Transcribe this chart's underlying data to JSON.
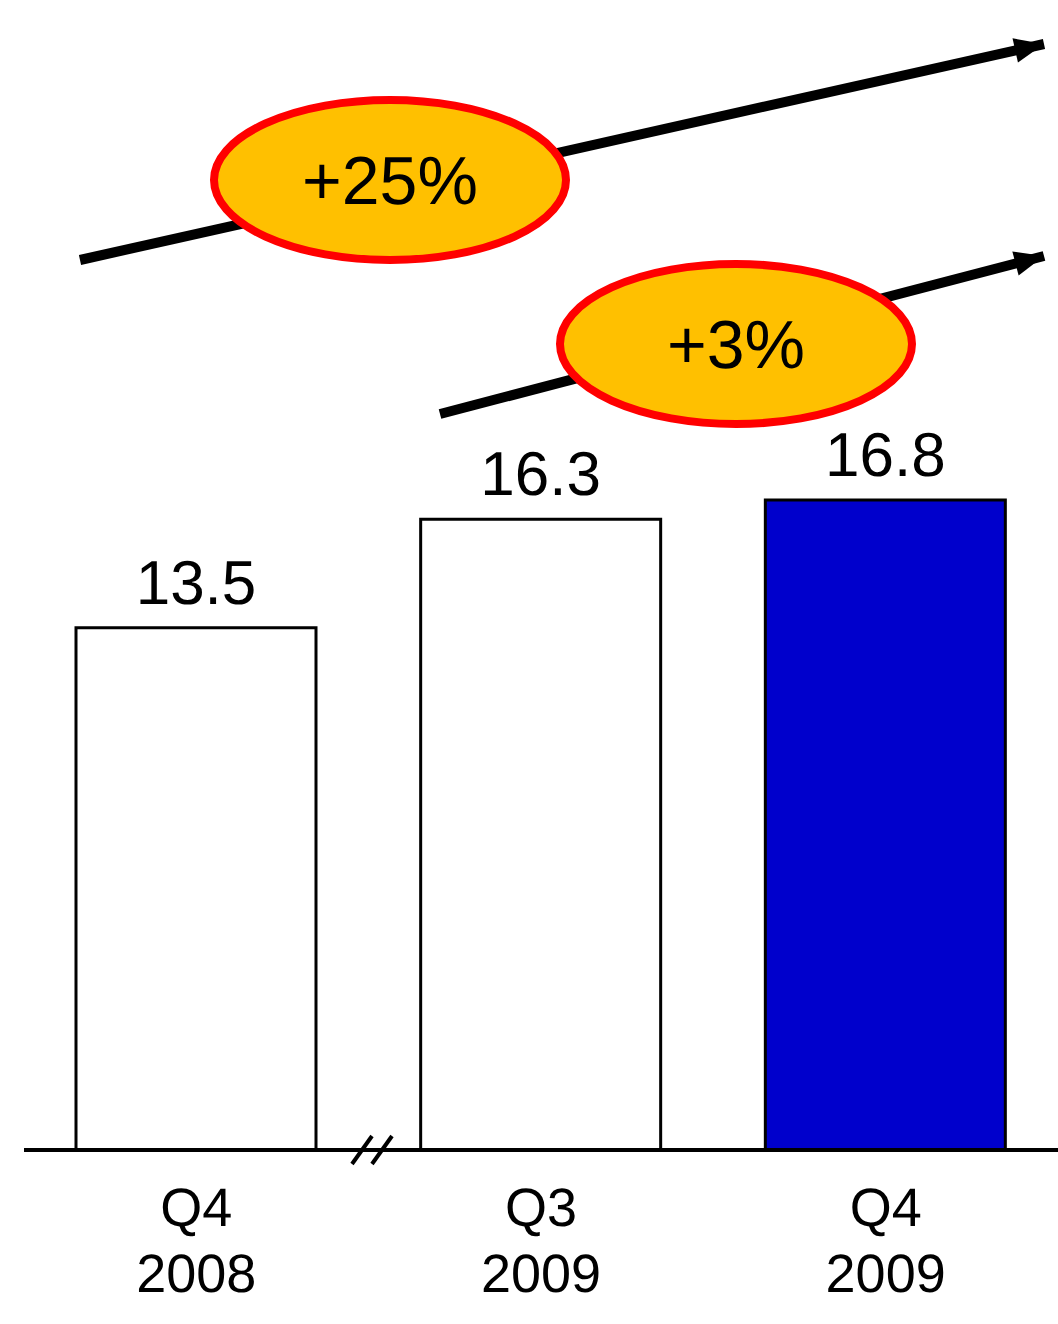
{
  "chart_data": {
    "type": "bar",
    "categories": [
      "Q4\n2008",
      "Q3\n2009",
      "Q4\n2009"
    ],
    "values": [
      13.5,
      16.3,
      16.8
    ],
    "colors": [
      "#ffffff",
      "#ffffff",
      "#0000cc"
    ],
    "data_labels": true,
    "annotations": [
      "+25%",
      "+3%"
    ]
  }
}
